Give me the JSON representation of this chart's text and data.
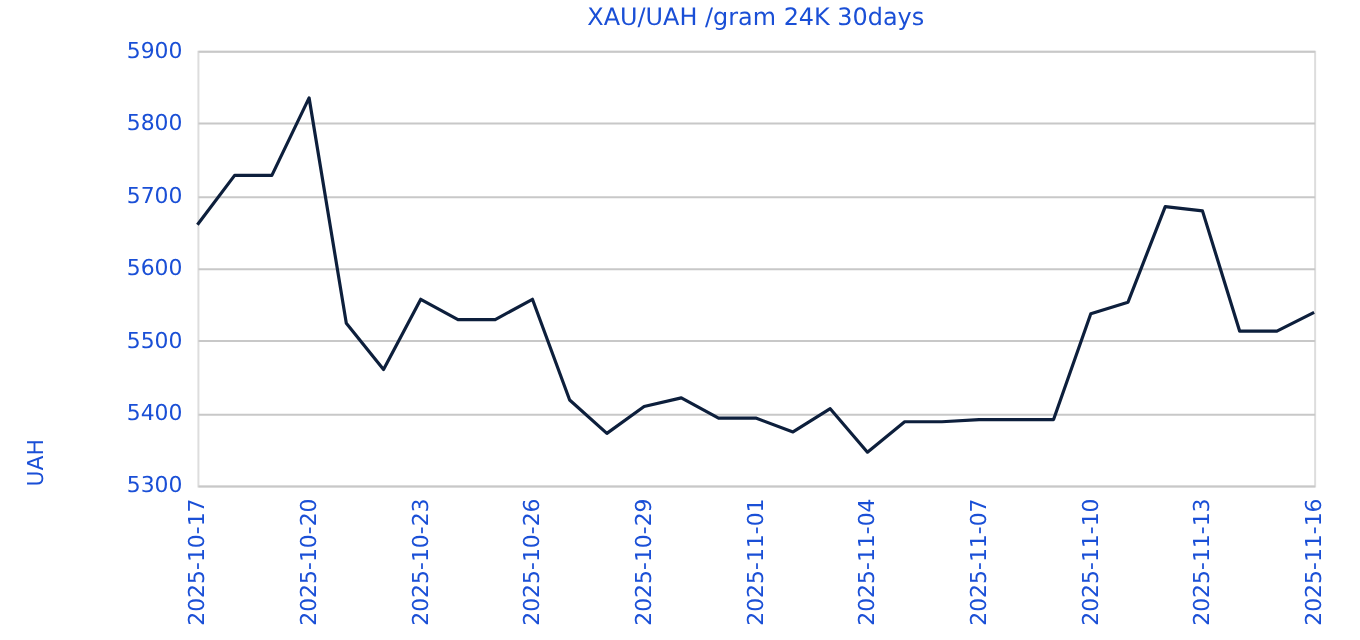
{
  "chart_data": {
    "type": "line",
    "title": "XAU/UAH /gram 24K 30days",
    "ylabel": "UAH",
    "x": [
      "2025-10-17",
      "2025-10-18",
      "2025-10-19",
      "2025-10-20",
      "2025-10-21",
      "2025-10-22",
      "2025-10-23",
      "2025-10-24",
      "2025-10-25",
      "2025-10-26",
      "2025-10-27",
      "2025-10-28",
      "2025-10-29",
      "2025-10-30",
      "2025-10-31",
      "2025-11-01",
      "2025-11-02",
      "2025-11-03",
      "2025-11-04",
      "2025-11-05",
      "2025-11-06",
      "2025-11-07",
      "2025-11-08",
      "2025-11-09",
      "2025-11-10",
      "2025-11-11",
      "2025-11-12",
      "2025-11-13",
      "2025-11-14",
      "2025-11-15",
      "2025-11-16"
    ],
    "series": [
      {
        "color": "#0d1f3c",
        "values": [
          5660,
          5728,
          5728,
          5835,
          5524,
          5460,
          5557,
          5529,
          5529,
          5557,
          5418,
          5372,
          5409,
          5421,
          5393,
          5393,
          5374,
          5406,
          5346,
          5388,
          5388,
          5391,
          5391,
          5391,
          5537,
          5553,
          5685,
          5679,
          5513,
          5513,
          5539
        ]
      }
    ],
    "xlim": [
      "2025-10-17",
      "2025-11-16"
    ],
    "xticks": [
      "2025-10-17",
      "2025-10-20",
      "2025-10-23",
      "2025-10-26",
      "2025-10-29",
      "2025-11-01",
      "2025-11-04",
      "2025-11-07",
      "2025-11-10",
      "2025-11-13",
      "2025-11-16"
    ],
    "ylim": [
      5300,
      5900
    ],
    "yticks": [
      5300,
      5400,
      5500,
      5600,
      5700,
      5800,
      5900
    ],
    "grid": "y",
    "marker": "none",
    "line_style": "solid"
  }
}
